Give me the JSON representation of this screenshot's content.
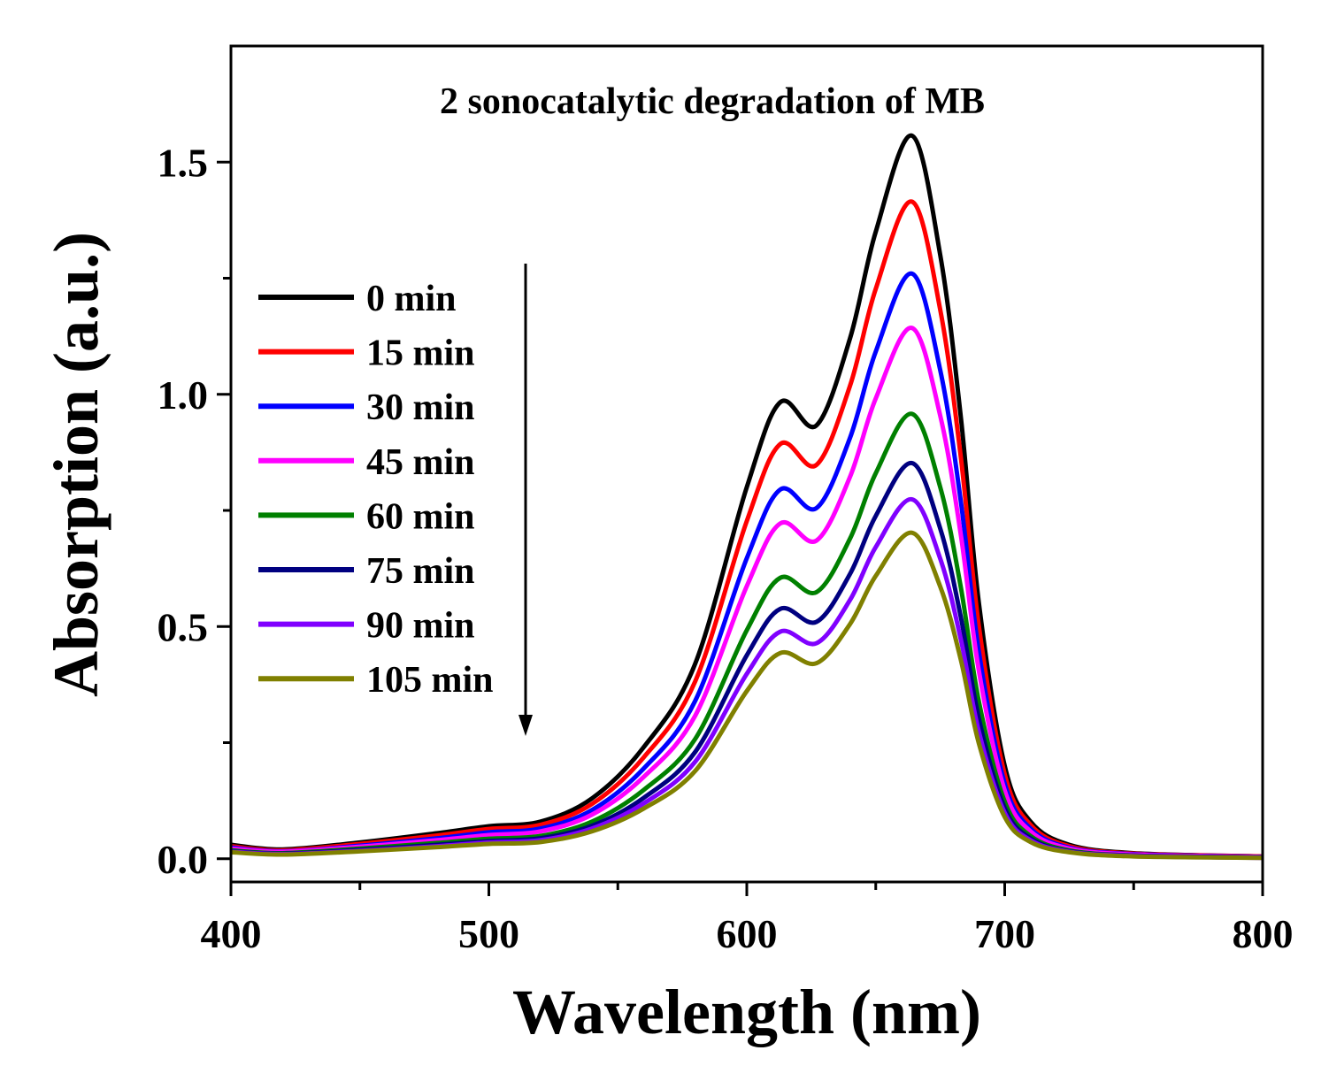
{
  "chart_data": {
    "type": "line",
    "title": "2 sonocatalytic degradation of MB",
    "xlabel": "Wavelength (nm)",
    "ylabel": "Absorption (a.u.)",
    "xlim": [
      400,
      800
    ],
    "ylim": [
      -0.05,
      1.75
    ],
    "xticks": [
      400,
      500,
      600,
      700,
      800
    ],
    "xtick_labels": [
      "400",
      "500",
      "600",
      "700",
      "800"
    ],
    "yticks": [
      0.0,
      0.5,
      1.0,
      1.5
    ],
    "ytick_labels": [
      "0.0",
      "0.5",
      "1.0",
      "1.5"
    ],
    "grid": false,
    "legend_position": "top-left",
    "annotation": "downward arrow indicating decreasing absorption over time",
    "x": [
      400,
      420,
      450,
      480,
      500,
      520,
      540,
      560,
      580,
      600,
      613,
      627,
      640,
      650,
      664,
      675,
      683,
      690,
      700,
      710,
      725,
      750,
      800
    ],
    "series": [
      {
        "name": "0 min",
        "color": "#000000",
        "values": [
          0.03,
          0.02,
          0.035,
          0.055,
          0.07,
          0.08,
          0.13,
          0.24,
          0.42,
          0.8,
          0.983,
          0.933,
          1.12,
          1.35,
          1.557,
          1.3,
          0.95,
          0.55,
          0.2,
          0.08,
          0.03,
          0.012,
          0.005
        ]
      },
      {
        "name": "15 min",
        "color": "#ff0000",
        "values": [
          0.027,
          0.018,
          0.032,
          0.05,
          0.064,
          0.073,
          0.118,
          0.218,
          0.382,
          0.727,
          0.893,
          0.848,
          1.018,
          1.227,
          1.415,
          1.182,
          0.864,
          0.5,
          0.182,
          0.073,
          0.027,
          0.011,
          0.005
        ]
      },
      {
        "name": "30 min",
        "color": "#0000ff",
        "values": [
          0.024,
          0.016,
          0.028,
          0.044,
          0.057,
          0.065,
          0.105,
          0.194,
          0.34,
          0.647,
          0.795,
          0.755,
          0.906,
          1.092,
          1.26,
          1.052,
          0.769,
          0.445,
          0.162,
          0.065,
          0.024,
          0.01,
          0.004
        ]
      },
      {
        "name": "45 min",
        "color": "#ff00ff",
        "values": [
          0.022,
          0.015,
          0.026,
          0.04,
          0.051,
          0.059,
          0.095,
          0.176,
          0.308,
          0.587,
          0.722,
          0.685,
          0.822,
          0.991,
          1.143,
          0.954,
          0.697,
          0.404,
          0.147,
          0.059,
          0.022,
          0.009,
          0.004
        ]
      },
      {
        "name": "60 min",
        "color": "#008000",
        "values": [
          0.018,
          0.012,
          0.022,
          0.034,
          0.043,
          0.049,
          0.08,
          0.148,
          0.258,
          0.492,
          0.605,
          0.574,
          0.689,
          0.83,
          0.958,
          0.8,
          0.584,
          0.338,
          0.123,
          0.049,
          0.018,
          0.007,
          0.003
        ]
      },
      {
        "name": "75 min",
        "color": "#000080",
        "values": [
          0.016,
          0.011,
          0.019,
          0.03,
          0.038,
          0.044,
          0.071,
          0.131,
          0.23,
          0.438,
          0.538,
          0.51,
          0.613,
          0.738,
          0.852,
          0.711,
          0.52,
          0.301,
          0.109,
          0.044,
          0.016,
          0.007,
          0.003
        ]
      },
      {
        "name": "90 min",
        "color": "#8000ff",
        "values": [
          0.015,
          0.01,
          0.017,
          0.027,
          0.035,
          0.04,
          0.065,
          0.119,
          0.209,
          0.398,
          0.489,
          0.464,
          0.557,
          0.671,
          0.774,
          0.646,
          0.472,
          0.273,
          0.099,
          0.04,
          0.015,
          0.006,
          0.002
        ]
      },
      {
        "name": "105 min",
        "color": "#808000",
        "values": [
          0.014,
          0.009,
          0.016,
          0.025,
          0.032,
          0.036,
          0.059,
          0.108,
          0.189,
          0.361,
          0.443,
          0.421,
          0.505,
          0.609,
          0.702,
          0.586,
          0.428,
          0.248,
          0.09,
          0.036,
          0.014,
          0.005,
          0.002
        ]
      }
    ]
  }
}
